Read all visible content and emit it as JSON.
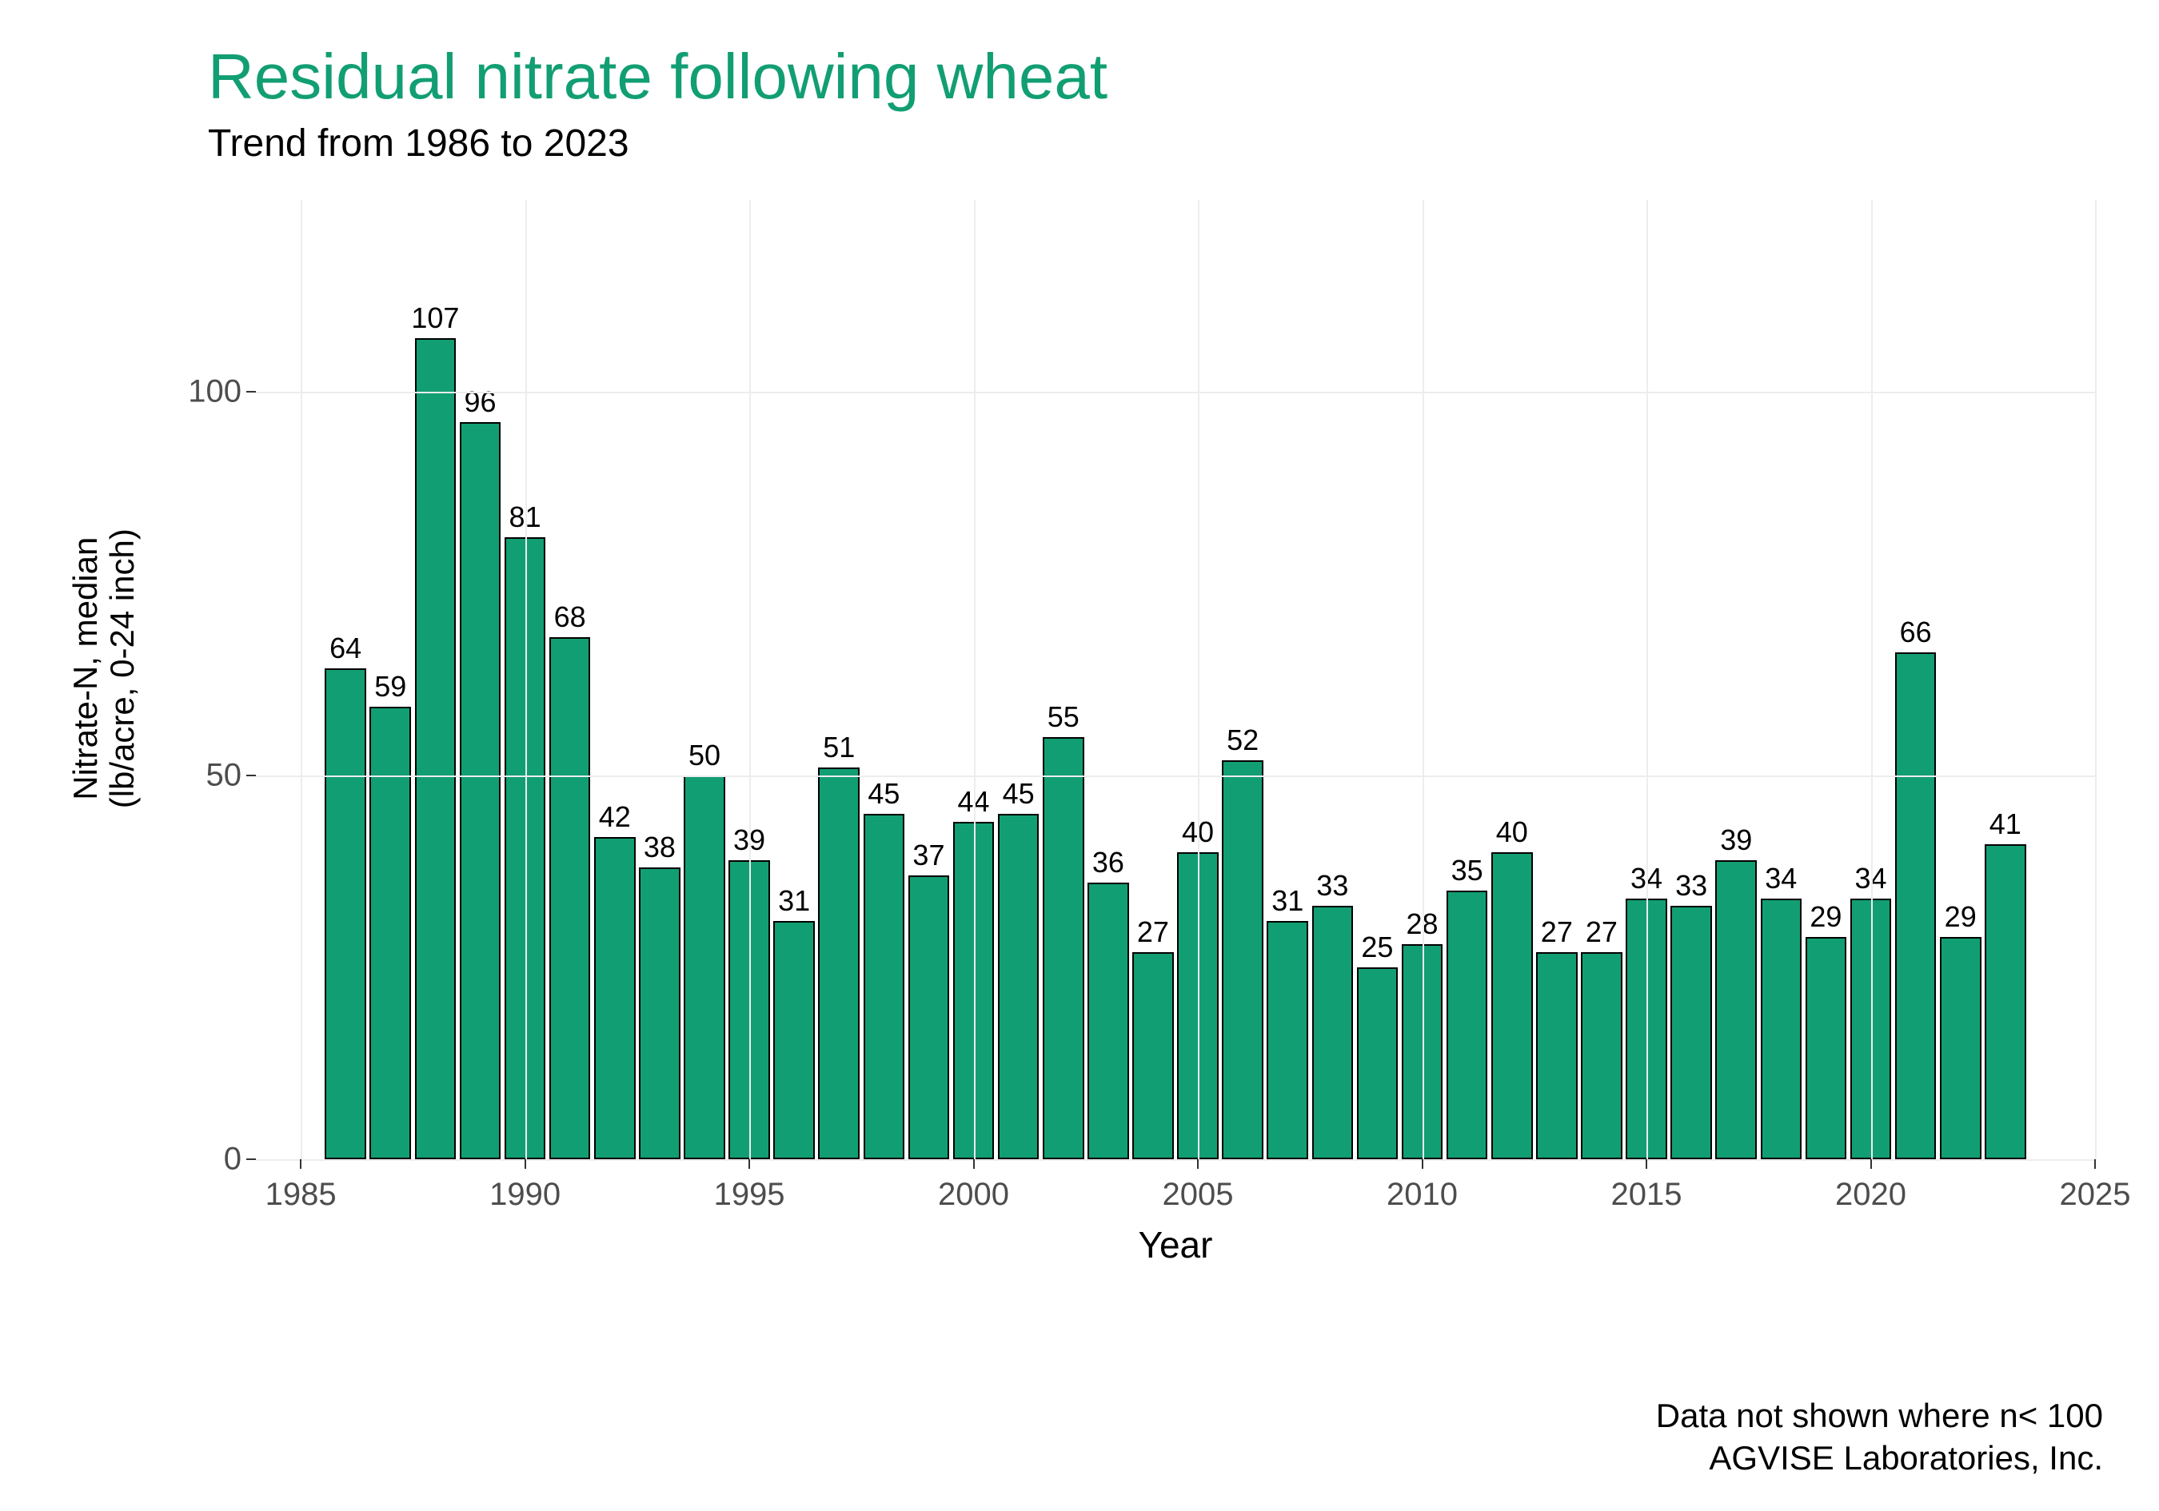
{
  "chart": {
    "type": "bar",
    "title": "Residual nitrate following wheat",
    "title_color": "#129e73",
    "title_fontsize": 80,
    "subtitle": "Trend from 1986 to 2023",
    "subtitle_fontsize": 48,
    "xlabel": "Year",
    "ylabel_line1": "Nitrate-N, median",
    "ylabel_line2": "(lb/acre, 0-24 inch)",
    "label_fontsize": 44,
    "tick_fontsize": 40,
    "bar_label_fontsize": 36,
    "background_color": "#ffffff",
    "grid_color": "#ededed",
    "bar_fill": "#129e73",
    "bar_border": "#000000",
    "xlim": [
      1984,
      2025
    ],
    "ylim": [
      0,
      125
    ],
    "yticks": [
      0,
      50,
      100
    ],
    "xticks": [
      1985,
      1990,
      1995,
      2000,
      2005,
      2010,
      2015,
      2020,
      2025
    ],
    "bar_width_years": 0.92,
    "years": [
      1986,
      1987,
      1988,
      1989,
      1990,
      1991,
      1992,
      1993,
      1994,
      1995,
      1996,
      1997,
      1998,
      1999,
      2000,
      2001,
      2002,
      2003,
      2004,
      2005,
      2006,
      2007,
      2008,
      2009,
      2010,
      2011,
      2012,
      2013,
      2014,
      2015,
      2016,
      2017,
      2018,
      2019,
      2020,
      2021,
      2022,
      2023
    ],
    "values": [
      64,
      59,
      107,
      96,
      81,
      68,
      42,
      38,
      50,
      39,
      31,
      51,
      45,
      37,
      44,
      45,
      55,
      36,
      27,
      40,
      52,
      31,
      33,
      25,
      28,
      35,
      40,
      27,
      27,
      34,
      33,
      39,
      34,
      29,
      34,
      66,
      29,
      41
    ],
    "caption_line1": "Data not shown where n< 100",
    "caption_line2": "AGVISE Laboratories, Inc."
  }
}
